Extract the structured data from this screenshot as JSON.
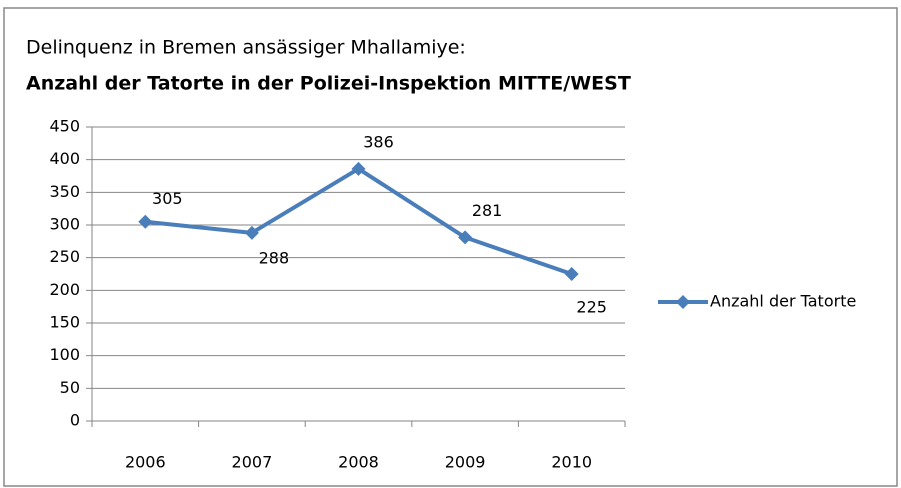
{
  "chart_data": {
    "type": "line",
    "subtitle": "Delinquenz in Bremen ansässiger Mhallamiye:",
    "title": "Anzahl der Tatorte in der Polizei-Inspektion MITTE/WEST",
    "categories": [
      "2006",
      "2007",
      "2008",
      "2009",
      "2010"
    ],
    "series": [
      {
        "name": "Anzahl der Tatorte",
        "color": "#4a7ebb",
        "values": [
          305,
          288,
          386,
          281,
          225
        ]
      }
    ],
    "ylim": [
      0,
      450
    ],
    "yticks": [
      0,
      50,
      100,
      150,
      200,
      250,
      300,
      350,
      400,
      450
    ],
    "grid": true,
    "legend": "right"
  }
}
